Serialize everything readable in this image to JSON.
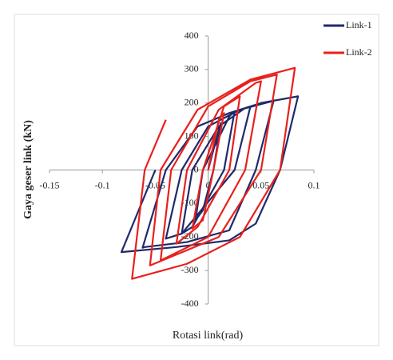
{
  "chart_data": {
    "type": "line",
    "x_label": "Rotasi link(rad)",
    "y_label": "Gaya geser link (kN)",
    "xlim": [
      -0.15,
      0.1
    ],
    "xticks": [
      -0.15,
      -0.1,
      -0.05,
      0,
      0.05,
      0.1
    ],
    "ylim": [
      -400,
      400
    ],
    "yticks": [
      -400,
      -300,
      -200,
      -100,
      0,
      100,
      200,
      300,
      400
    ],
    "grid": false,
    "legend": "right",
    "series": [
      {
        "name": "Link-1",
        "color": "#1f2a6b",
        "x": [
          0,
          0.01,
          0.012,
          0.005,
          -0.005,
          -0.012,
          -0.005,
          0.02,
          0.025,
          0.015,
          -0.015,
          -0.025,
          -0.015,
          0.01,
          0.035,
          0.04,
          0.025,
          -0.025,
          -0.04,
          -0.025,
          0,
          0.03,
          0.06,
          0.062,
          0.045,
          0.02,
          -0.02,
          -0.06,
          -0.062,
          -0.04,
          -0.01,
          0.02,
          0.05,
          0.085,
          0.068,
          0.045,
          0.02,
          -0.03,
          -0.082,
          -0.05
        ],
        "values": [
          0,
          120,
          140,
          0,
          -120,
          -150,
          0,
          160,
          175,
          0,
          -170,
          -190,
          0,
          130,
          185,
          190,
          0,
          -190,
          -205,
          0,
          130,
          180,
          205,
          208,
          0,
          -180,
          -215,
          -230,
          -232,
          0,
          130,
          170,
          200,
          220,
          0,
          -160,
          -210,
          -230,
          -245,
          0
        ]
      },
      {
        "name": "Link-2",
        "color": "#e8201c",
        "x": [
          0,
          0.01,
          0.015,
          0.005,
          -0.005,
          -0.015,
          -0.005,
          0.015,
          0.03,
          0.02,
          -0.01,
          -0.03,
          -0.02,
          0.01,
          0.045,
          0.05,
          0.035,
          0,
          -0.045,
          -0.035,
          0,
          0.04,
          0.065,
          0.05,
          0.01,
          -0.055,
          -0.045,
          -0.01,
          0.04,
          0.082,
          0.068,
          0.03,
          -0.02,
          -0.072,
          -0.06,
          -0.04
        ],
        "values": [
          0,
          150,
          170,
          0,
          -150,
          -175,
          0,
          190,
          220,
          0,
          -170,
          -220,
          0,
          180,
          260,
          265,
          0,
          -200,
          -270,
          0,
          190,
          265,
          285,
          0,
          -200,
          -285,
          0,
          180,
          270,
          305,
          0,
          -200,
          -280,
          -325,
          0,
          150
        ]
      }
    ]
  }
}
